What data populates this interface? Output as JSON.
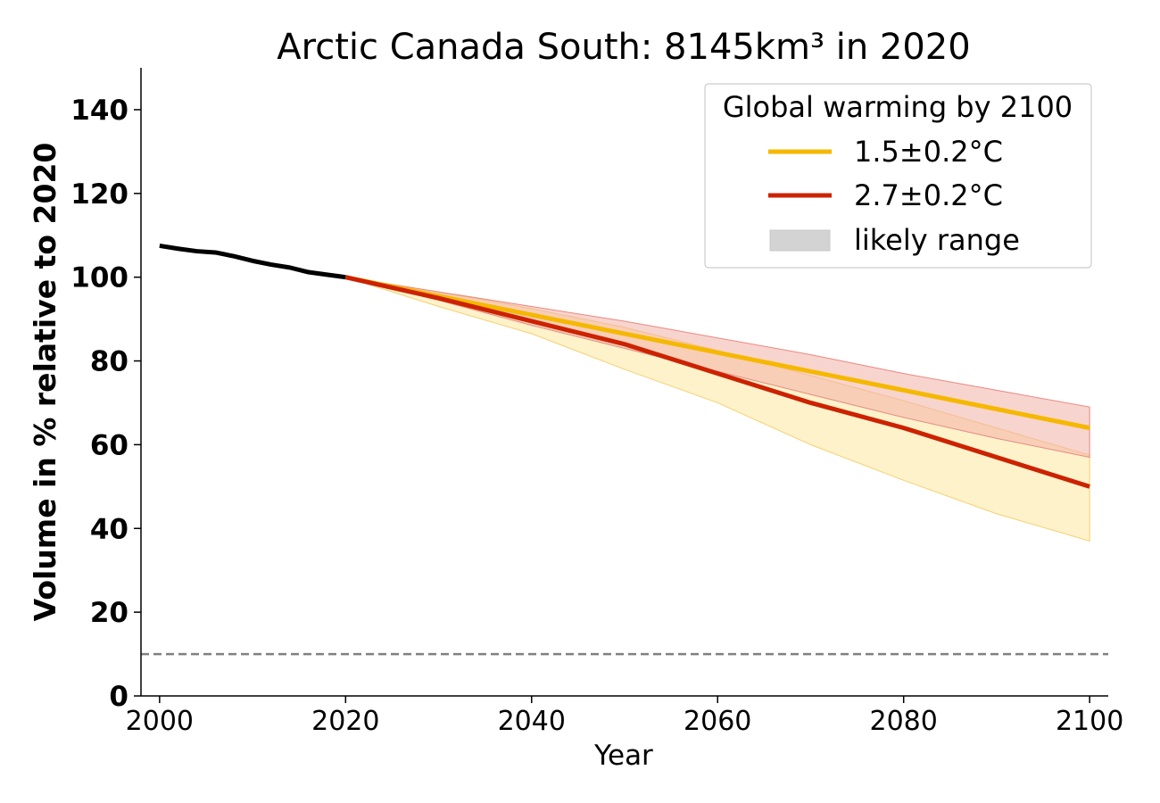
{
  "chart_data": {
    "type": "line",
    "title": "Arctic Canada South: 8145km³ in 2020",
    "xlabel": "Year",
    "ylabel": "Volume in % relative to 2020",
    "xlim": [
      1998,
      2102
    ],
    "ylim": [
      0,
      150
    ],
    "x_ticks": [
      "2000",
      "2020",
      "2040",
      "2060",
      "2080",
      "2100"
    ],
    "y_ticks": [
      "0",
      "20",
      "40",
      "60",
      "80",
      "100",
      "120",
      "140"
    ],
    "reference_line": 10,
    "legend": {
      "title": "Global warming by 2100",
      "placement": "top-right",
      "entries": [
        "1.5±0.2°C",
        "2.7±0.2°C",
        "likely range"
      ]
    },
    "colors": {
      "historical": "#000000",
      "low": "#f5b800",
      "high": "#cc2200",
      "low_band": "#fde9a6",
      "high_band": "#f2b0a8",
      "likely": "#d3d3d3"
    },
    "historical": {
      "x": [
        2000,
        2002,
        2004,
        2006,
        2008,
        2010,
        2012,
        2014,
        2016,
        2018,
        2020
      ],
      "y": [
        107.5,
        106.8,
        106.2,
        105.9,
        105.0,
        103.9,
        103.0,
        102.3,
        101.2,
        100.6,
        100.0
      ]
    },
    "series": [
      {
        "name": "1.5±0.2°C",
        "x": [
          2020,
          2030,
          2040,
          2050,
          2060,
          2070,
          2080,
          2090,
          2100
        ],
        "y": [
          100,
          95.5,
          91.0,
          86.5,
          82.0,
          77.5,
          73.0,
          68.5,
          64.0
        ],
        "lower": [
          100,
          94.5,
          88.5,
          83.0,
          77.5,
          72.0,
          66.5,
          61.5,
          57.0
        ],
        "upper": [
          100,
          96.5,
          93.0,
          89.5,
          85.5,
          81.5,
          77.0,
          73.0,
          69.0
        ]
      },
      {
        "name": "2.7±0.2°C",
        "x": [
          2020,
          2030,
          2040,
          2050,
          2060,
          2070,
          2080,
          2090,
          2100
        ],
        "y": [
          100,
          95.0,
          89.5,
          84.0,
          77.0,
          70.0,
          64.0,
          57.0,
          50.0
        ],
        "lower": [
          100,
          93.0,
          86.5,
          78.0,
          70.0,
          60.0,
          51.5,
          43.5,
          37.0
        ],
        "upper": [
          100,
          96.5,
          92.5,
          88.0,
          82.5,
          76.5,
          70.5,
          64.0,
          57.5
        ]
      }
    ]
  }
}
